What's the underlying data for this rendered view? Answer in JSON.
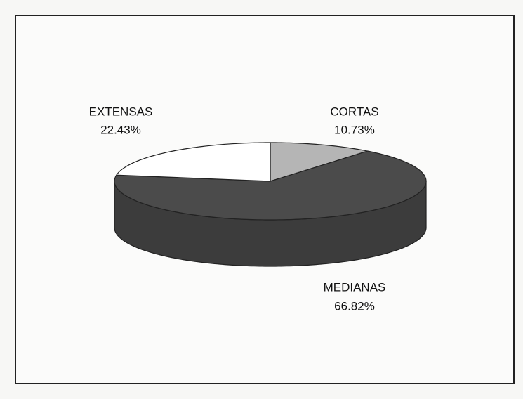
{
  "chart_data": {
    "type": "pie3d",
    "categories": [
      "CORTAS",
      "MEDIANAS",
      "EXTENSAS"
    ],
    "values": [
      10.73,
      66.82,
      22.43
    ],
    "value_labels": [
      "10.73%",
      "66.82%",
      "22.43%"
    ],
    "colors": [
      "#b5b5b5",
      "#4b4b4b",
      "#ffffff"
    ]
  }
}
